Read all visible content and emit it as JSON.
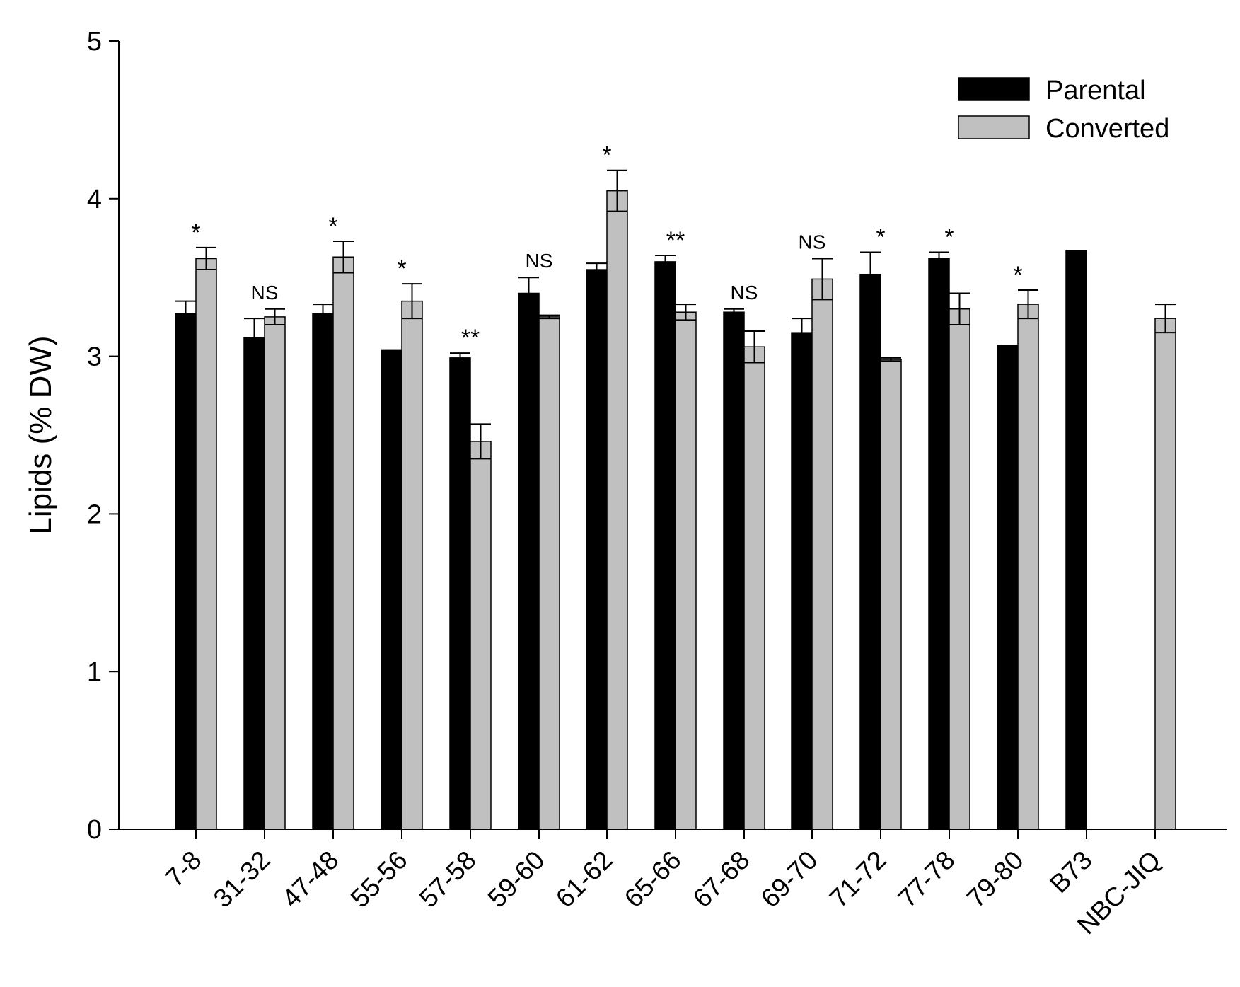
{
  "chart_data": {
    "type": "bar",
    "title": "",
    "xlabel": "",
    "ylabel": "Lipids (% DW)",
    "ylim": [
      0,
      5
    ],
    "yticks": [
      "0",
      "1",
      "2",
      "3",
      "4",
      "5"
    ],
    "legend_position": "top-right",
    "categories": [
      "7-8",
      "31-32",
      "47-48",
      "55-56",
      "57-58",
      "59-60",
      "61-62",
      "65-66",
      "67-68",
      "69-70",
      "71-72",
      "77-78",
      "79-80",
      "B73",
      "NBC-JIQ"
    ],
    "series": [
      {
        "name": "Parental",
        "color": "#000000",
        "values": [
          3.27,
          3.12,
          3.27,
          3.04,
          2.99,
          3.4,
          3.55,
          3.6,
          3.28,
          3.15,
          3.52,
          3.62,
          3.07,
          3.67,
          null
        ],
        "errors": [
          0.08,
          0.12,
          0.06,
          0.0,
          0.03,
          0.1,
          0.04,
          0.04,
          0.02,
          0.09,
          0.14,
          0.04,
          0.0,
          0.0,
          null
        ]
      },
      {
        "name": "Converted",
        "color": "#c0c0c0",
        "values": [
          3.62,
          3.25,
          3.63,
          3.35,
          2.46,
          3.25,
          4.05,
          3.28,
          3.06,
          3.49,
          2.98,
          3.3,
          3.33,
          null,
          3.24
        ],
        "errors": [
          0.07,
          0.05,
          0.1,
          0.11,
          0.11,
          0.01,
          0.13,
          0.05,
          0.1,
          0.13,
          0.01,
          0.1,
          0.09,
          null,
          0.09
        ]
      }
    ],
    "significance": [
      "*",
      "NS",
      "*",
      "*",
      "**",
      "NS",
      "*",
      "**",
      "NS",
      "NS",
      "*",
      "*",
      "*",
      "",
      ""
    ]
  }
}
